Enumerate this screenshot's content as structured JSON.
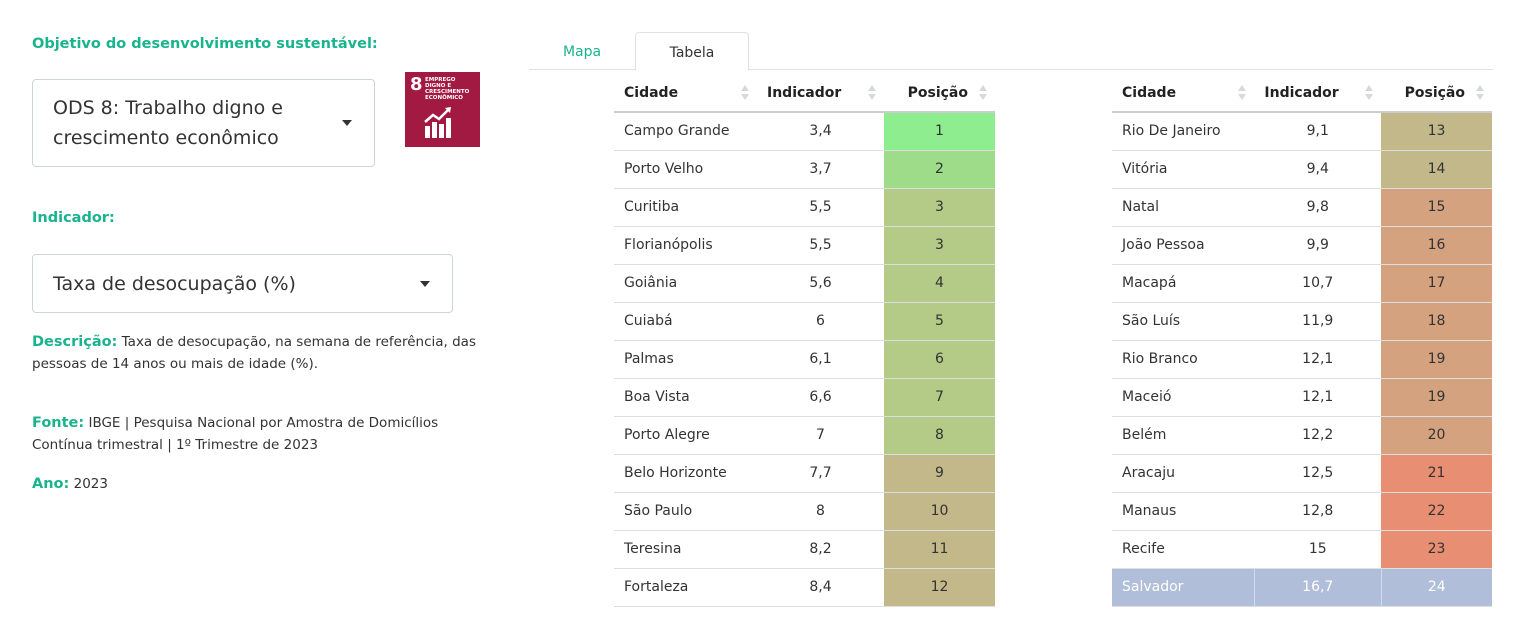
{
  "sidebar": {
    "objective_label": "Objetivo do desenvolvimento sustentável:",
    "objective_select": "ODS 8: Trabalho digno e\ncrescimento econômico",
    "sdg_badge": {
      "number": "8",
      "text": "EMPREGO DIGNO E CRESCIMENTO ECONÔMICO",
      "color": "#a21942",
      "icon": "growth-chart-icon"
    },
    "indicator_label": "Indicador:",
    "indicator_select": "Taxa de desocupação (%)",
    "description_label": "Descrição:",
    "description_text": "Taxa de desocupação, na semana de referência, das pessoas de 14 anos ou mais de idade (%).",
    "source_label": "Fonte:",
    "source_text": "IBGE | Pesquisa Nacional por Amostra de Domicílios Contínua trimestral | 1º Trimestre de 2023",
    "year_label": "Ano:",
    "year_value": "2023"
  },
  "tabs": [
    {
      "label": "Mapa",
      "active": false
    },
    {
      "label": "Tabela",
      "active": true
    }
  ],
  "table": {
    "headers": {
      "city": "Cidade",
      "indicator": "Indicador",
      "position": "Posição"
    },
    "rows_left": [
      {
        "city": "Campo Grande",
        "value": "3,4",
        "position": "1",
        "color": "#8eed8e"
      },
      {
        "city": "Porto Velho",
        "value": "3,7",
        "position": "2",
        "color": "#9fdc89"
      },
      {
        "city": "Curitiba",
        "value": "5,5",
        "position": "3",
        "color": "#b3cb87"
      },
      {
        "city": "Florianópolis",
        "value": "5,5",
        "position": "3",
        "color": "#b3cb87"
      },
      {
        "city": "Goiânia",
        "value": "5,6",
        "position": "4",
        "color": "#b3cb87"
      },
      {
        "city": "Cuiabá",
        "value": "6",
        "position": "5",
        "color": "#b3cb87"
      },
      {
        "city": "Palmas",
        "value": "6,1",
        "position": "6",
        "color": "#b3cb87"
      },
      {
        "city": "Boa Vista",
        "value": "6,6",
        "position": "7",
        "color": "#b3cb87"
      },
      {
        "city": "Porto Alegre",
        "value": "7",
        "position": "8",
        "color": "#b3cb87"
      },
      {
        "city": "Belo Horizonte",
        "value": "7,7",
        "position": "9",
        "color": "#c2b889"
      },
      {
        "city": "São Paulo",
        "value": "8",
        "position": "10",
        "color": "#c2b889"
      },
      {
        "city": "Teresina",
        "value": "8,2",
        "position": "11",
        "color": "#c2b889"
      },
      {
        "city": "Fortaleza",
        "value": "8,4",
        "position": "12",
        "color": "#c2b889"
      }
    ],
    "rows_right": [
      {
        "city": "Rio De Janeiro",
        "value": "9,1",
        "position": "13",
        "color": "#c2b889"
      },
      {
        "city": "Vitória",
        "value": "9,4",
        "position": "14",
        "color": "#c2b889"
      },
      {
        "city": "Natal",
        "value": "9,8",
        "position": "15",
        "color": "#d4a27f"
      },
      {
        "city": "João Pessoa",
        "value": "9,9",
        "position": "16",
        "color": "#d4a27f"
      },
      {
        "city": "Macapá",
        "value": "10,7",
        "position": "17",
        "color": "#d4a27f"
      },
      {
        "city": "São Luís",
        "value": "11,9",
        "position": "18",
        "color": "#d4a27f"
      },
      {
        "city": "Rio Branco",
        "value": "12,1",
        "position": "19",
        "color": "#d4a27f"
      },
      {
        "city": "Maceió",
        "value": "12,1",
        "position": "19",
        "color": "#d4a27f"
      },
      {
        "city": "Belém",
        "value": "12,2",
        "position": "20",
        "color": "#d4a27f"
      },
      {
        "city": "Aracaju",
        "value": "12,5",
        "position": "21",
        "color": "#e88e72"
      },
      {
        "city": "Manaus",
        "value": "12,8",
        "position": "22",
        "color": "#e88e72"
      },
      {
        "city": "Recife",
        "value": "15",
        "position": "23",
        "color": "#e88e72"
      },
      {
        "city": "Salvador",
        "value": "16,7",
        "position": "24",
        "color": "#b0bed9",
        "highlighted": true
      }
    ]
  }
}
